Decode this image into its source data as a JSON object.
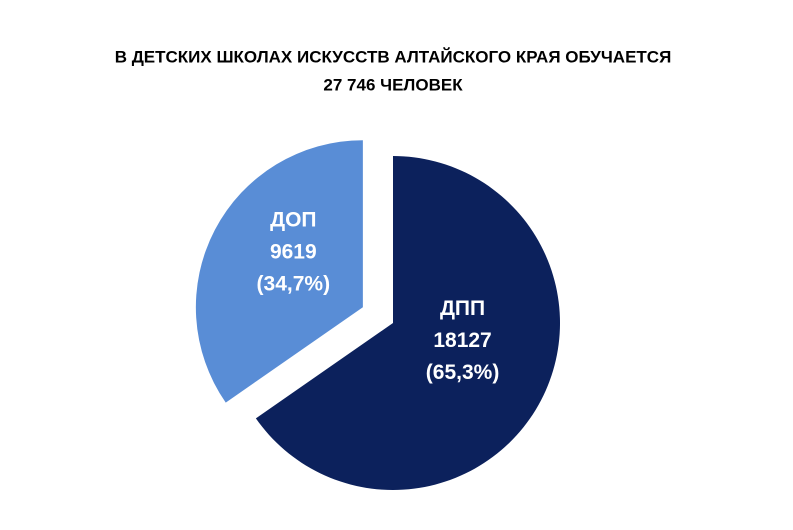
{
  "chart_data": {
    "type": "pie",
    "title": [
      "В ДЕТСКИХ ШКОЛАХ ИСКУССТВ АЛТАЙСКОГО КРАЯ ОБУЧАЕТСЯ",
      "27 746 ЧЕЛОВЕК"
    ],
    "categories": [
      "ДПП",
      "ДОП"
    ],
    "values": [
      18127,
      9619
    ],
    "percent_labels": [
      "(65,3%)",
      "(34,7%)"
    ],
    "colors": [
      "#0c215c",
      "#598dd6"
    ],
    "exploded": [
      false,
      true
    ]
  }
}
